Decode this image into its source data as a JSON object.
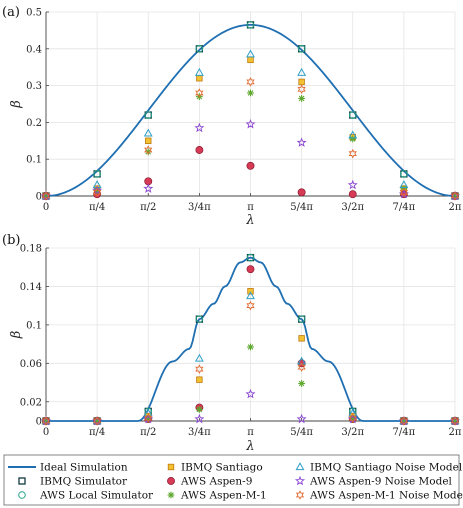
{
  "chart_data": [
    {
      "type": "scatter",
      "panel_label": "(a)",
      "xlabel": "λ",
      "ylabel": "β",
      "xlim": [
        0,
        2
      ],
      "ylim": [
        0,
        0.5
      ],
      "x_unit": "π",
      "x_ticks": [
        0,
        0.25,
        0.5,
        0.75,
        1,
        1.25,
        1.5,
        1.75,
        2
      ],
      "x_tick_labels": [
        "0",
        "π/4",
        "π/2",
        "3/4π",
        "π",
        "5/4π",
        "3/2π",
        "7/4π",
        "2π"
      ],
      "y_ticks": [
        0,
        0.1,
        0.2,
        0.3,
        0.4,
        0.5
      ],
      "y_tick_labels": [
        "0",
        "0.1",
        "0.2",
        "0.3",
        "0.4",
        "0.5"
      ],
      "grid": true,
      "series": [
        {
          "name": "Ideal Simulation",
          "style": "line",
          "curve": "ideal_a"
        },
        {
          "name": "IBMQ Simulator",
          "style": "square",
          "x": [
            0,
            0.25,
            0.5,
            0.75,
            1,
            1.25,
            1.5,
            1.75,
            2
          ],
          "y": [
            0,
            0.06,
            0.22,
            0.4,
            0.465,
            0.4,
            0.22,
            0.06,
            0
          ]
        },
        {
          "name": "AWS Local Simulator",
          "style": "circle-open",
          "x": [
            0,
            0.25,
            0.5,
            0.75,
            1,
            1.25,
            1.5,
            1.75,
            2
          ],
          "y": [
            0,
            0.06,
            0.22,
            0.4,
            0.465,
            0.4,
            0.22,
            0.06,
            0
          ]
        },
        {
          "name": "IBMQ Santiago",
          "style": "square-filled",
          "x": [
            0,
            0.25,
            0.5,
            0.75,
            1,
            1.25,
            1.5,
            1.75,
            2
          ],
          "y": [
            0,
            0.02,
            0.15,
            0.32,
            0.37,
            0.31,
            0.16,
            0.02,
            0
          ]
        },
        {
          "name": "AWS Aspen-9",
          "style": "circle-filled",
          "x": [
            0,
            0.25,
            0.5,
            0.75,
            1,
            1.25,
            1.5,
            1.75,
            2
          ],
          "y": [
            0,
            0.005,
            0.04,
            0.125,
            0.082,
            0.01,
            0.005,
            0.005,
            0
          ]
        },
        {
          "name": "AWS Aspen-M-1",
          "style": "asterisk",
          "x": [
            0,
            0.25,
            0.5,
            0.75,
            1,
            1.25,
            1.5,
            1.75,
            2
          ],
          "y": [
            0,
            0.015,
            0.12,
            0.27,
            0.28,
            0.265,
            0.155,
            0.02,
            0
          ]
        },
        {
          "name": "IBMQ Santiago Noise Model",
          "style": "triangle",
          "x": [
            0,
            0.25,
            0.5,
            0.75,
            1,
            1.25,
            1.5,
            1.75,
            2
          ],
          "y": [
            0,
            0.03,
            0.17,
            0.335,
            0.385,
            0.335,
            0.165,
            0.03,
            0
          ]
        },
        {
          "name": "AWS Aspen-9 Noise Model",
          "style": "star",
          "x": [
            0,
            0.25,
            0.5,
            0.75,
            1,
            1.25,
            1.5,
            1.75,
            2
          ],
          "y": [
            0,
            0.015,
            0.02,
            0.185,
            0.195,
            0.145,
            0.03,
            0.005,
            0
          ]
        },
        {
          "name": "AWS Aspen-M-1 Noise Model",
          "style": "hexagram",
          "x": [
            0,
            0.25,
            0.5,
            0.75,
            1,
            1.25,
            1.5,
            1.75,
            2
          ],
          "y": [
            0,
            0.01,
            0.125,
            0.28,
            0.31,
            0.29,
            0.115,
            0.01,
            0
          ]
        }
      ]
    },
    {
      "type": "scatter",
      "panel_label": "(b)",
      "xlabel": "λ",
      "ylabel": "β",
      "xlim": [
        0,
        2
      ],
      "ylim": [
        0,
        0.18
      ],
      "x_unit": "π",
      "x_ticks": [
        0,
        0.25,
        0.5,
        0.75,
        1,
        1.25,
        1.5,
        1.75,
        2
      ],
      "x_tick_labels": [
        "0",
        "π/4",
        "π/2",
        "3/4π",
        "π",
        "5/4π",
        "3/2π",
        "7/4π",
        "2π"
      ],
      "y_ticks": [
        0,
        0.02,
        0.06,
        0.1,
        0.14,
        0.18
      ],
      "y_tick_labels": [
        "0",
        "0.02",
        "0.06",
        "0.1",
        "0.14",
        "0.18"
      ],
      "grid": true,
      "series": [
        {
          "name": "Ideal Simulation",
          "style": "line",
          "curve": "ideal_b"
        },
        {
          "name": "IBMQ Simulator",
          "style": "square",
          "x": [
            0,
            0.25,
            0.5,
            0.75,
            1,
            1.25,
            1.5,
            1.75,
            2
          ],
          "y": [
            0,
            0,
            0.01,
            0.106,
            0.17,
            0.106,
            0.01,
            0,
            0
          ]
        },
        {
          "name": "AWS Local Simulator",
          "style": "circle-open",
          "x": [
            0,
            0.25,
            0.5,
            0.75,
            1,
            1.25,
            1.5,
            1.75,
            2
          ],
          "y": [
            0,
            0,
            0.01,
            0.106,
            0.17,
            0.106,
            0.01,
            0,
            0
          ]
        },
        {
          "name": "IBMQ Santiago",
          "style": "square-filled",
          "x": [
            0,
            0.25,
            0.5,
            0.75,
            1,
            1.25,
            1.5,
            1.75,
            2
          ],
          "y": [
            0,
            0,
            0.005,
            0.043,
            0.135,
            0.086,
            0.005,
            0,
            0
          ]
        },
        {
          "name": "AWS Aspen-9",
          "style": "circle-filled",
          "x": [
            0,
            0.25,
            0.5,
            0.75,
            1,
            1.25,
            1.5,
            1.75,
            2
          ],
          "y": [
            0,
            0,
            0.002,
            0.014,
            0.158,
            0.06,
            0.002,
            0,
            0
          ]
        },
        {
          "name": "AWS Aspen-M-1",
          "style": "asterisk",
          "x": [
            0,
            0.25,
            0.5,
            0.75,
            1,
            1.25,
            1.5,
            1.75,
            2
          ],
          "y": [
            0,
            0,
            0.002,
            0.012,
            0.077,
            0.039,
            0.002,
            0,
            0
          ]
        },
        {
          "name": "IBMQ Santiago Noise Model",
          "style": "triangle",
          "x": [
            0,
            0.25,
            0.5,
            0.75,
            1,
            1.25,
            1.5,
            1.75,
            2
          ],
          "y": [
            0,
            0,
            0.008,
            0.065,
            0.13,
            0.062,
            0.008,
            0,
            0
          ]
        },
        {
          "name": "AWS Aspen-9 Noise Model",
          "style": "star",
          "x": [
            0,
            0.25,
            0.5,
            0.75,
            1,
            1.25,
            1.5,
            1.75,
            2
          ],
          "y": [
            0,
            0,
            0.002,
            0.002,
            0.028,
            0.002,
            0.002,
            0,
            0
          ]
        },
        {
          "name": "AWS Aspen-M-1 Noise Model",
          "style": "hexagram",
          "x": [
            0,
            0.25,
            0.5,
            0.75,
            1,
            1.25,
            1.5,
            1.75,
            2
          ],
          "y": [
            0,
            0,
            0.003,
            0.054,
            0.12,
            0.056,
            0.003,
            0,
            0
          ]
        }
      ]
    }
  ],
  "legend": {
    "placement": "bottom",
    "columns": 3,
    "entries": [
      {
        "label": "Ideal Simulation",
        "style": "line"
      },
      {
        "label": "IBMQ Santiago",
        "style": "square-filled"
      },
      {
        "label": "IBMQ Santiago Noise Model",
        "style": "triangle"
      },
      {
        "label": "IBMQ Simulator",
        "style": "square"
      },
      {
        "label": "AWS Aspen-9",
        "style": "circle-filled"
      },
      {
        "label": "AWS Aspen-9 Noise Model",
        "style": "star"
      },
      {
        "label": "AWS Local Simulator",
        "style": "circle-open"
      },
      {
        "label": "AWS Aspen-M-1",
        "style": "asterisk"
      },
      {
        "label": "AWS Aspen-M-1 Noise Model",
        "style": "hexagram"
      }
    ]
  },
  "colors": {
    "ideal": "#1f6fb2",
    "ibmq_sim": "#103a40",
    "aws_local": "#27a58a",
    "santiago_fill": "#f2c232",
    "santiago_edge": "#c07a10",
    "aspen9_fill": "#d63a55",
    "aspen9_edge": "#8a1a30",
    "aspenm1": "#5fa830",
    "santiago_noise": "#30a0c8",
    "aspen9_noise": "#8a45d0",
    "aspenm1_noise": "#e06a30",
    "grid": "#e4e4e4",
    "axis": "#444444"
  }
}
